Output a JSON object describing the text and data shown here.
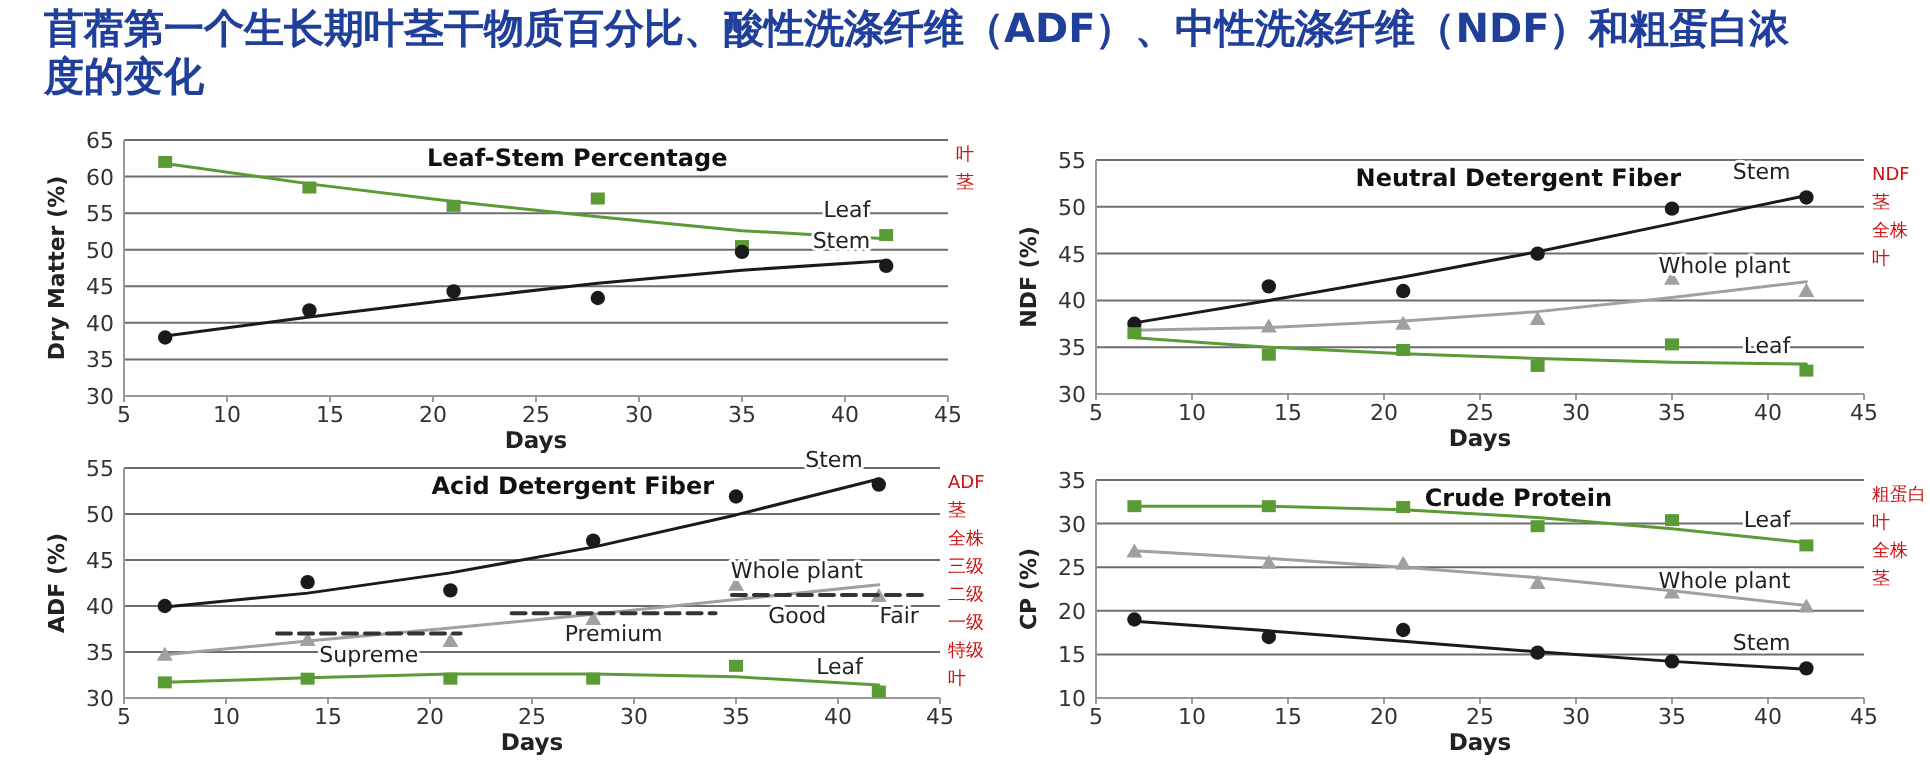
{
  "chart_data": [
    {
      "type": "other",
      "title": "苜蓿第一个生长期叶茎干物质百分比、酸性洗涤纤维（ADF）、中性洗涤纤维（NDF）和粗蛋白浓度的变化"
    },
    {
      "type": "scatter",
      "title": "Leaf-Stem Percentage",
      "xlabel": "Days",
      "ylabel": "Dry Matter (%)",
      "xlim": [
        5,
        45
      ],
      "xticks": [
        5,
        10,
        15,
        20,
        25,
        30,
        35,
        40,
        45
      ],
      "ylim": [
        30,
        65
      ],
      "yticks": [
        30,
        35,
        40,
        45,
        50,
        55,
        60,
        65
      ],
      "grid": "y",
      "annotations": [
        "叶",
        "茎"
      ],
      "series": [
        {
          "name": "Leaf",
          "type": "scatter",
          "marker": "square",
          "color": "#5b9b35",
          "x": [
            7,
            14,
            21,
            28,
            35,
            42
          ],
          "values": [
            62,
            58.5,
            56,
            57,
            50.5,
            52
          ]
        },
        {
          "type": "line",
          "marker": "none",
          "color": "#5b9b35",
          "x": [
            7,
            14,
            21,
            28,
            35,
            42
          ],
          "values": [
            61.8,
            59,
            56.6,
            54.5,
            52.6,
            51.5
          ]
        },
        {
          "name": "Stem",
          "type": "scatter",
          "marker": "circle",
          "color": "#1a1a1a",
          "x": [
            7,
            14,
            21,
            28,
            35,
            42
          ],
          "values": [
            38,
            41.7,
            44.3,
            43.4,
            49.7,
            47.8
          ]
        },
        {
          "type": "line",
          "marker": "none",
          "color": "#1a1a1a",
          "x": [
            7,
            14,
            21,
            28,
            35,
            42
          ],
          "values": [
            38.2,
            40.8,
            43.2,
            45.4,
            47.2,
            48.5
          ]
        }
      ]
    },
    {
      "type": "scatter",
      "title": "Neutral Detergent Fiber",
      "xlabel": "Days",
      "ylabel": "NDF (%)",
      "xlim": [
        5,
        45
      ],
      "xticks": [
        5,
        10,
        15,
        20,
        25,
        30,
        35,
        40,
        45
      ],
      "ylim": [
        30,
        55
      ],
      "yticks": [
        30,
        35,
        40,
        45,
        50,
        55
      ],
      "grid": "y",
      "annotations": [
        "NDF",
        "茎",
        "全株",
        "叶"
      ],
      "series": [
        {
          "name": "Stem",
          "type": "scatter",
          "marker": "circle",
          "color": "#1a1a1a",
          "x": [
            7,
            14,
            21,
            28,
            35,
            42
          ],
          "values": [
            37.5,
            41.5,
            41,
            45,
            49.8,
            51
          ]
        },
        {
          "type": "line",
          "marker": "none",
          "color": "#1a1a1a",
          "x": [
            7,
            14,
            21,
            28,
            35,
            42
          ],
          "values": [
            37.6,
            40,
            42.5,
            45.2,
            48.2,
            51.2
          ]
        },
        {
          "name": "Whole plant",
          "type": "scatter",
          "marker": "triangle",
          "color": "#a0a0a0",
          "x": [
            14,
            21,
            28,
            35,
            42
          ],
          "values": [
            37.2,
            37.5,
            38,
            42.3,
            41
          ]
        },
        {
          "type": "line",
          "marker": "none",
          "color": "#a0a0a0",
          "x": [
            7,
            14,
            21,
            28,
            35,
            42
          ],
          "values": [
            36.8,
            37.1,
            37.8,
            38.8,
            40.3,
            42
          ]
        },
        {
          "name": "Leaf",
          "type": "scatter",
          "marker": "square",
          "color": "#5b9b35",
          "x": [
            7,
            14,
            21,
            28,
            35,
            42
          ],
          "values": [
            36.5,
            34.2,
            34.7,
            33,
            35.3,
            32.5
          ]
        },
        {
          "type": "line",
          "marker": "none",
          "color": "#5b9b35",
          "x": [
            7,
            14,
            21,
            28,
            35,
            42
          ],
          "values": [
            36,
            35,
            34.3,
            33.8,
            33.4,
            33.2
          ]
        }
      ]
    },
    {
      "type": "scatter",
      "title": "Acid Detergent Fiber",
      "xlabel": "Days",
      "ylabel": "ADF (%)",
      "xlim": [
        5,
        45
      ],
      "xticks": [
        5,
        10,
        15,
        20,
        25,
        30,
        35,
        40,
        45
      ],
      "ylim": [
        30,
        55
      ],
      "yticks": [
        30,
        35,
        40,
        45,
        50,
        55
      ],
      "grid": "y",
      "annotations": [
        "ADF",
        "茎",
        "全株",
        "三级",
        "二级",
        "一级",
        "特级",
        "叶",
        {
          "text": "Supreme",
          "x": 17,
          "y": 37
        },
        {
          "text": "Premium",
          "x": 29,
          "y": 39.2
        },
        {
          "text": "Good",
          "x": 38,
          "y": 41.2
        },
        {
          "text": "Fair",
          "x": 43,
          "y": 41.2
        }
      ],
      "series": [
        {
          "name": "Stem",
          "type": "scatter",
          "marker": "circle",
          "color": "#1a1a1a",
          "x": [
            7,
            14,
            21,
            28,
            35,
            42
          ],
          "values": [
            40,
            42.6,
            41.7,
            47.1,
            51.9,
            53.2
          ]
        },
        {
          "type": "line",
          "marker": "none",
          "color": "#1a1a1a",
          "x": [
            7,
            14,
            21,
            28,
            35,
            42
          ],
          "values": [
            39.9,
            41.4,
            43.6,
            46.4,
            49.9,
            53.8
          ]
        },
        {
          "name": "Whole plant",
          "type": "scatter",
          "marker": "triangle",
          "color": "#a0a0a0",
          "x": [
            7,
            14,
            21,
            28,
            35,
            42
          ],
          "values": [
            34.7,
            36.3,
            36.2,
            38.6,
            42.3,
            41.1
          ]
        },
        {
          "type": "line",
          "marker": "none",
          "color": "#a0a0a0",
          "x": [
            7,
            14,
            21,
            28,
            35,
            42
          ],
          "values": [
            34.7,
            36.2,
            37.6,
            39.1,
            40.7,
            42.3
          ]
        },
        {
          "name": "Leaf",
          "type": "scatter",
          "marker": "square",
          "color": "#5b9b35",
          "x": [
            7,
            14,
            21,
            28,
            35,
            42
          ],
          "values": [
            31.7,
            32.1,
            32.1,
            32.1,
            33.5,
            30.7
          ]
        },
        {
          "type": "line",
          "marker": "none",
          "color": "#5b9b35",
          "x": [
            7,
            14,
            21,
            28,
            35,
            42
          ],
          "values": [
            31.7,
            32.2,
            32.6,
            32.6,
            32.3,
            31.4
          ]
        },
        {
          "type": "line",
          "marker": "none",
          "line_style": "dashed",
          "color": "#333333",
          "x": [
            12.5,
            21.5
          ],
          "values": [
            37,
            37
          ]
        },
        {
          "type": "line",
          "marker": "none",
          "line_style": "dashed",
          "color": "#333333",
          "x": [
            24,
            34
          ],
          "values": [
            39.2,
            39.2
          ]
        },
        {
          "type": "line",
          "marker": "none",
          "line_style": "dashed",
          "color": "#333333",
          "x": [
            34.8,
            44.5
          ],
          "values": [
            41.2,
            41.2
          ]
        }
      ]
    },
    {
      "type": "scatter",
      "title": "Crude Protein",
      "xlabel": "Days",
      "ylabel": "CP (%)",
      "xlim": [
        5,
        45
      ],
      "xticks": [
        5,
        10,
        15,
        20,
        25,
        30,
        35,
        40,
        45
      ],
      "ylim": [
        10,
        35
      ],
      "yticks": [
        10,
        15,
        20,
        25,
        30,
        35
      ],
      "grid": "y",
      "annotations": [
        "粗蛋白",
        "叶",
        "全株",
        "茎"
      ],
      "series": [
        {
          "name": "Leaf",
          "type": "scatter",
          "marker": "square",
          "color": "#5b9b35",
          "x": [
            7,
            14,
            21,
            28,
            35,
            42
          ],
          "values": [
            32,
            32,
            31.9,
            29.7,
            30.4,
            27.5
          ]
        },
        {
          "type": "line",
          "marker": "none",
          "color": "#5b9b35",
          "x": [
            7,
            14,
            21,
            28,
            35,
            42
          ],
          "values": [
            32,
            32,
            31.6,
            30.7,
            29.4,
            27.8
          ]
        },
        {
          "name": "Whole plant",
          "type": "scatter",
          "marker": "triangle",
          "color": "#a0a0a0",
          "x": [
            7,
            14,
            21,
            28,
            35,
            42
          ],
          "values": [
            26.8,
            25.5,
            25.4,
            23.2,
            22.1,
            20.5
          ]
        },
        {
          "type": "line",
          "marker": "none",
          "color": "#a0a0a0",
          "x": [
            7,
            14,
            21,
            28,
            35,
            42
          ],
          "values": [
            26.9,
            26,
            25,
            23.8,
            22.3,
            20.6
          ]
        },
        {
          "name": "Stem",
          "type": "scatter",
          "marker": "circle",
          "color": "#1a1a1a",
          "x": [
            7,
            14,
            21,
            28,
            35,
            42
          ],
          "values": [
            19,
            17,
            17.8,
            15.2,
            14.2,
            13.4
          ]
        },
        {
          "type": "line",
          "marker": "none",
          "color": "#1a1a1a",
          "x": [
            7,
            14,
            21,
            28,
            35,
            42
          ],
          "values": [
            18.8,
            17.7,
            16.5,
            15.3,
            14.2,
            13.3
          ]
        }
      ]
    }
  ]
}
